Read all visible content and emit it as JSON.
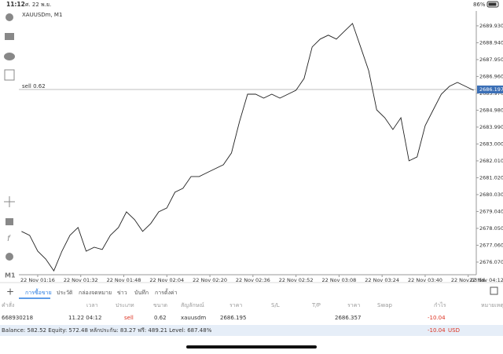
{
  "status_bar": {
    "time": "11:12",
    "date": "ศ. 22 พ.ย.",
    "battery": "86%"
  },
  "toolbar": {
    "timeframe": "M1"
  },
  "chart_data": {
    "type": "line",
    "title": "XAUUSDm, M1",
    "color": "#222222",
    "x": [
      "22 Nov 01:10",
      "22 Nov 01:13",
      "22 Nov 01:16",
      "22 Nov 01:19",
      "22 Nov 01:22",
      "22 Nov 01:25",
      "22 Nov 01:28",
      "22 Nov 01:31",
      "22 Nov 01:34",
      "22 Nov 01:37",
      "22 Nov 01:40",
      "22 Nov 01:43",
      "22 Nov 01:46",
      "22 Nov 01:49",
      "22 Nov 01:52",
      "22 Nov 01:55",
      "22 Nov 01:58",
      "22 Nov 02:01",
      "22 Nov 02:04",
      "22 Nov 02:07",
      "22 Nov 02:10",
      "22 Nov 02:13",
      "22 Nov 02:16",
      "22 Nov 02:19",
      "22 Nov 02:22",
      "22 Nov 02:25",
      "22 Nov 02:28",
      "22 Nov 02:31",
      "22 Nov 02:34",
      "22 Nov 02:37",
      "22 Nov 02:40",
      "22 Nov 02:43",
      "22 Nov 02:46",
      "22 Nov 02:49",
      "22 Nov 02:52",
      "22 Nov 02:55",
      "22 Nov 02:58",
      "22 Nov 03:01",
      "22 Nov 03:04",
      "22 Nov 03:07",
      "22 Nov 03:10",
      "22 Nov 03:13",
      "22 Nov 03:16",
      "22 Nov 03:19",
      "22 Nov 03:22",
      "22 Nov 03:25",
      "22 Nov 03:28",
      "22 Nov 03:31",
      "22 Nov 03:34",
      "22 Nov 03:37",
      "22 Nov 03:40",
      "22 Nov 03:43",
      "22 Nov 03:46",
      "22 Nov 03:49",
      "22 Nov 03:52",
      "22 Nov 03:55",
      "22 Nov 03:58"
    ],
    "values": [
      2677.87,
      2677.64,
      2676.71,
      2676.25,
      2675.56,
      2676.71,
      2677.64,
      2678.1,
      2676.71,
      2676.94,
      2676.81,
      2677.64,
      2678.1,
      2679.02,
      2678.56,
      2677.87,
      2678.33,
      2679.02,
      2679.25,
      2680.17,
      2680.4,
      2681.09,
      2681.09,
      2681.32,
      2681.55,
      2681.78,
      2682.47,
      2684.31,
      2685.92,
      2685.92,
      2685.69,
      2685.92,
      2685.69,
      2685.92,
      2686.15,
      2686.84,
      2688.69,
      2689.15,
      2689.38,
      2689.15,
      2689.61,
      2690.07,
      2688.69,
      2687.3,
      2685.0,
      2684.54,
      2683.85,
      2684.54,
      2682.01,
      2682.24,
      2684.08,
      2685.0,
      2685.92,
      2686.38,
      2686.61,
      2686.38,
      2686.15
    ],
    "xlim": [
      "22 Nov 01:09",
      "22 Nov 03:59"
    ],
    "xticks": [
      "22 Nov 01:16",
      "22 Nov 01:32",
      "22 Nov 01:48",
      "22 Nov 02:04",
      "22 Nov 02:20",
      "22 Nov 02:36",
      "22 Nov 02:52",
      "22 Nov 03:08",
      "22 Nov 03:24",
      "22 Nov 03:40",
      "22 Nov 03:56",
      "22 Nov 04:12"
    ],
    "ylim": [
      2675.33,
      2690.8
    ],
    "yticks": [
      {
        "value": 2676.07,
        "label": "2676.070"
      },
      {
        "value": 2677.06,
        "label": "2677.060"
      },
      {
        "value": 2678.05,
        "label": "2678.050"
      },
      {
        "value": 2679.04,
        "label": "2679.040"
      },
      {
        "value": 2680.03,
        "label": "2680.030"
      },
      {
        "value": 2681.02,
        "label": "2681.020"
      },
      {
        "value": 2682.01,
        "label": "2682.010"
      },
      {
        "value": 2683,
        "label": "2683.000"
      },
      {
        "value": 2683.99,
        "label": "2683.990"
      },
      {
        "value": 2684.98,
        "label": "2684.980"
      },
      {
        "value": 2685.97,
        "label": "2685.970"
      },
      {
        "value": 2686.96,
        "label": "2686.960"
      },
      {
        "value": 2687.95,
        "label": "2687.950"
      },
      {
        "value": 2688.94,
        "label": "2688.940"
      },
      {
        "value": 2689.93,
        "label": "2689.930"
      }
    ],
    "order_line": {
      "text": "sell 0.62",
      "value": 2686.195
    },
    "last_price": 2686.197
  },
  "tabs": [
    "การซื้อขาย",
    "ประวัติ",
    "กล่องจดหมาย",
    "ข่าว",
    "บันทึก",
    "การตั้งค่า"
  ],
  "table": {
    "headers": [
      "คำสั่ง",
      "เวลา",
      "ประเภท",
      "ขนาด",
      "สัญลักษณ์",
      "ราคา",
      "S/L",
      "T/P",
      "ราคา",
      "Swap",
      "กำไร",
      "หมายเหตุ"
    ],
    "row": {
      "order": "668930218",
      "time": "11.22 04:12",
      "type": "sell",
      "volume": "0.62",
      "symbol": "xauusdm",
      "open_price": "2686.195",
      "price": "2686.357",
      "profit": "-10.04"
    }
  },
  "summary": {
    "text": "Balance: 582.52 Equity: 572.48 หลักประกัน: 83.27 ฟรี: 489.21 Level: 687.48%",
    "profit": "-10.04",
    "currency": "USD"
  }
}
